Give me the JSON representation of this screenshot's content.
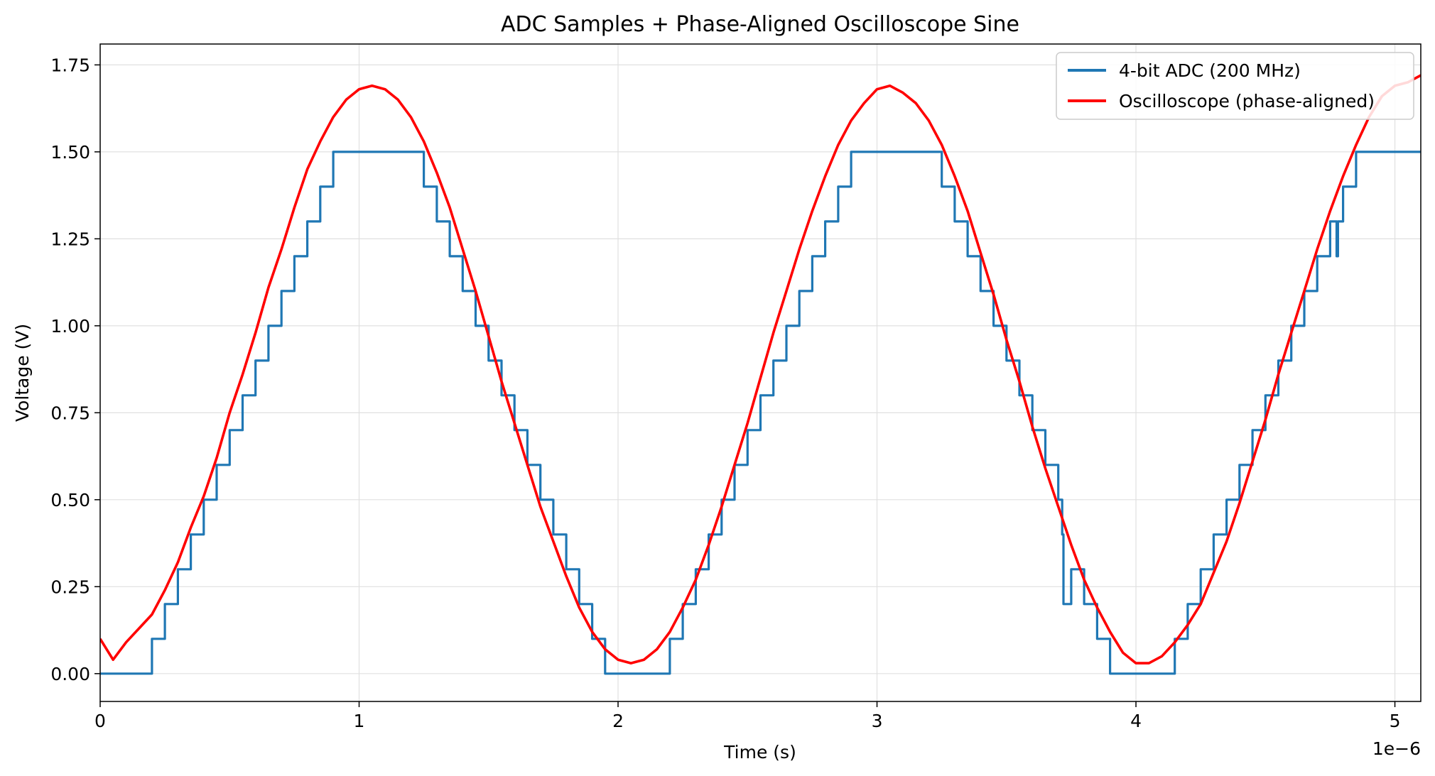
{
  "chart_data": {
    "type": "line",
    "title": "ADC Samples + Phase-Aligned Oscilloscope Sine",
    "xlabel": "Time (s)",
    "ylabel": "Voltage (V)",
    "x_multiplier_label": "1e−6",
    "xlim": [
      0,
      5.1
    ],
    "ylim": [
      -0.08,
      1.81
    ],
    "x_ticks": [
      0,
      1,
      2,
      3,
      4,
      5
    ],
    "x_tick_labels": [
      "0",
      "1",
      "2",
      "3",
      "4",
      "5"
    ],
    "y_ticks": [
      0,
      0.25,
      0.5,
      0.75,
      1.0,
      1.25,
      1.5,
      1.75
    ],
    "y_tick_labels": [
      "0.00",
      "0.25",
      "0.50",
      "0.75",
      "1.00",
      "1.25",
      "1.50",
      "1.75"
    ],
    "grid": true,
    "legend_position": "top-right",
    "series": [
      {
        "name": "4-bit ADC (200 MHz)",
        "style": "step",
        "color": "#1f77b4",
        "x": [
          0,
          0.2,
          0.25,
          0.3,
          0.35,
          0.4,
          0.45,
          0.5,
          0.55,
          0.6,
          0.65,
          0.7,
          0.75,
          0.8,
          0.85,
          0.9,
          0.95,
          1.0,
          1.05,
          1.1,
          1.15,
          1.2,
          1.25,
          1.3,
          1.35,
          1.4,
          1.45,
          1.5,
          1.55,
          1.6,
          1.65,
          1.7,
          1.75,
          1.8,
          1.85,
          1.9,
          1.95,
          2.0,
          2.05,
          2.1,
          2.15,
          2.2,
          2.25,
          2.3,
          2.35,
          2.4,
          2.45,
          2.5,
          2.55,
          2.6,
          2.65,
          2.7,
          2.75,
          2.8,
          2.85,
          2.9,
          2.95,
          3.0,
          3.05,
          3.1,
          3.15,
          3.2,
          3.25,
          3.3,
          3.35,
          3.4,
          3.45,
          3.5,
          3.55,
          3.6,
          3.65,
          3.7,
          3.715,
          3.72,
          3.75,
          3.8,
          3.85,
          3.9,
          3.95,
          4.0,
          4.05,
          4.1,
          4.15,
          4.2,
          4.25,
          4.3,
          4.35,
          4.4,
          4.45,
          4.5,
          4.55,
          4.6,
          4.65,
          4.7,
          4.75,
          4.775,
          4.78,
          4.8,
          4.85,
          4.9,
          4.95,
          5.0,
          5.05,
          5.1
        ],
        "y": [
          0,
          0.1,
          0.2,
          0.3,
          0.4,
          0.5,
          0.6,
          0.7,
          0.8,
          0.9,
          1.0,
          1.1,
          1.2,
          1.3,
          1.4,
          1.5,
          1.5,
          1.5,
          1.5,
          1.5,
          1.5,
          1.5,
          1.4,
          1.3,
          1.2,
          1.1,
          1.0,
          0.9,
          0.8,
          0.7,
          0.6,
          0.5,
          0.4,
          0.3,
          0.2,
          0.1,
          0,
          0,
          0,
          0,
          0,
          0.1,
          0.2,
          0.3,
          0.4,
          0.5,
          0.6,
          0.7,
          0.8,
          0.9,
          1.0,
          1.1,
          1.2,
          1.3,
          1.4,
          1.5,
          1.5,
          1.5,
          1.5,
          1.5,
          1.5,
          1.5,
          1.4,
          1.3,
          1.2,
          1.1,
          1.0,
          0.9,
          0.8,
          0.7,
          0.6,
          0.5,
          0.4,
          0.2,
          0.3,
          0.2,
          0.1,
          0,
          0,
          0,
          0,
          0,
          0.1,
          0.2,
          0.3,
          0.4,
          0.5,
          0.6,
          0.7,
          0.8,
          0.9,
          1.0,
          1.1,
          1.2,
          1.3,
          1.2,
          1.3,
          1.4,
          1.5,
          1.5,
          1.5,
          1.5,
          1.5,
          1.5
        ]
      },
      {
        "name": "Oscilloscope (phase-aligned)",
        "style": "line",
        "color": "#ff0000",
        "x": [
          0.0,
          0.05,
          0.1,
          0.15,
          0.2,
          0.25,
          0.3,
          0.35,
          0.4,
          0.45,
          0.5,
          0.55,
          0.6,
          0.65,
          0.7,
          0.75,
          0.8,
          0.85,
          0.9,
          0.95,
          1.0,
          1.05,
          1.1,
          1.15,
          1.2,
          1.25,
          1.3,
          1.35,
          1.4,
          1.45,
          1.5,
          1.55,
          1.6,
          1.65,
          1.7,
          1.75,
          1.8,
          1.85,
          1.9,
          1.95,
          2.0,
          2.05,
          2.1,
          2.15,
          2.2,
          2.25,
          2.3,
          2.35,
          2.4,
          2.45,
          2.5,
          2.55,
          2.6,
          2.65,
          2.7,
          2.75,
          2.8,
          2.85,
          2.9,
          2.95,
          3.0,
          3.05,
          3.1,
          3.15,
          3.2,
          3.25,
          3.3,
          3.35,
          3.4,
          3.45,
          3.5,
          3.55,
          3.6,
          3.65,
          3.7,
          3.75,
          3.8,
          3.85,
          3.9,
          3.95,
          4.0,
          4.05,
          4.1,
          4.15,
          4.2,
          4.25,
          4.3,
          4.35,
          4.4,
          4.45,
          4.5,
          4.55,
          4.6,
          4.65,
          4.7,
          4.75,
          4.8,
          4.85,
          4.9,
          4.95,
          5.0,
          5.05,
          5.1
        ],
        "y": [
          0.1,
          0.04,
          0.09,
          0.13,
          0.17,
          0.24,
          0.32,
          0.42,
          0.51,
          0.62,
          0.75,
          0.86,
          0.98,
          1.11,
          1.22,
          1.34,
          1.45,
          1.53,
          1.6,
          1.65,
          1.68,
          1.69,
          1.68,
          1.65,
          1.6,
          1.53,
          1.44,
          1.34,
          1.22,
          1.1,
          0.97,
          0.84,
          0.72,
          0.6,
          0.48,
          0.38,
          0.28,
          0.19,
          0.12,
          0.07,
          0.04,
          0.03,
          0.04,
          0.07,
          0.12,
          0.19,
          0.27,
          0.37,
          0.48,
          0.6,
          0.72,
          0.85,
          0.98,
          1.1,
          1.22,
          1.33,
          1.43,
          1.52,
          1.59,
          1.64,
          1.68,
          1.69,
          1.67,
          1.64,
          1.59,
          1.52,
          1.43,
          1.33,
          1.21,
          1.09,
          0.96,
          0.84,
          0.71,
          0.59,
          0.48,
          0.37,
          0.27,
          0.19,
          0.12,
          0.06,
          0.03,
          0.03,
          0.05,
          0.09,
          0.14,
          0.2,
          0.29,
          0.38,
          0.49,
          0.61,
          0.73,
          0.86,
          0.98,
          1.1,
          1.22,
          1.33,
          1.43,
          1.52,
          1.6,
          1.66,
          1.69,
          1.7,
          1.72
        ]
      }
    ]
  }
}
